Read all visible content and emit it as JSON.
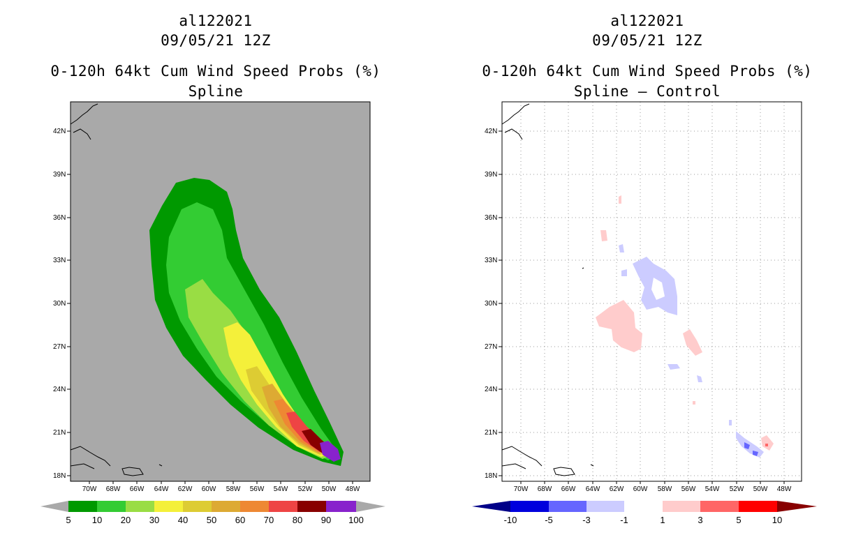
{
  "panels": [
    {
      "storm_id": "al122021",
      "datetime": "09/05/21 12Z",
      "title": "0-120h 64kt Cum Wind Speed Probs (%)",
      "subtitle": "Spline",
      "colorbar": {
        "labels": [
          "5",
          "10",
          "20",
          "30",
          "40",
          "50",
          "60",
          "70",
          "80",
          "90",
          "100"
        ],
        "colors": [
          "#009900",
          "#33cc33",
          "#99dd44",
          "#f4f03a",
          "#ddcc33",
          "#ddaa33",
          "#ee8833",
          "#ee4444",
          "#880000",
          "#8822cc"
        ]
      }
    },
    {
      "storm_id": "al122021",
      "datetime": "09/05/21 12Z",
      "title": "0-120h 64kt Cum Wind Speed Probs (%)",
      "subtitle": "Spline – Control",
      "colorbar": {
        "labels": [
          "-10",
          "-5",
          "-3",
          "-1",
          "1",
          "3",
          "5",
          "10"
        ],
        "colors": [
          "#0000dd",
          "#6666ff",
          "#ccccff",
          "#ffffff",
          "#ffcccc",
          "#ff6666",
          "#ff0000"
        ]
      }
    }
  ],
  "axes": {
    "lon_labels": [
      "70W",
      "68W",
      "66W",
      "64W",
      "62W",
      "60W",
      "58W",
      "56W",
      "54W",
      "52W",
      "50W",
      "48W"
    ],
    "lat_labels": [
      "18N",
      "21N",
      "24N",
      "27N",
      "30N",
      "33N",
      "36N",
      "39N",
      "42N"
    ]
  },
  "colors": {
    "land_bg": "#a9a9a9",
    "outline": "#000000"
  }
}
